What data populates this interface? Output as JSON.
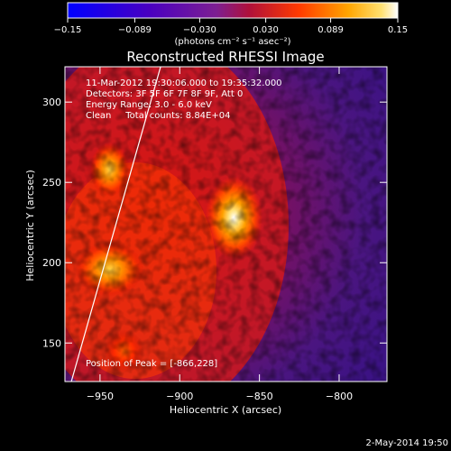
{
  "chart_data": {
    "type": "heatmap",
    "title": "Reconstructed RHESSI Image",
    "xlabel": "Heliocentric X (arcsec)",
    "ylabel": "Heliocentric Y (arcsec)",
    "xlim": [
      -972,
      -770
    ],
    "ylim": [
      126,
      322
    ],
    "x_ticks": [
      -950,
      -900,
      -850,
      -800
    ],
    "x_tick_labels": [
      "−950",
      "−900",
      "−850",
      "−800"
    ],
    "y_ticks": [
      150,
      200,
      250,
      300
    ],
    "y_tick_labels": [
      "150",
      "200",
      "250",
      "300"
    ],
    "colorbar": {
      "range": [
        -0.15,
        0.15
      ],
      "ticks": [
        -0.15,
        -0.089,
        -0.03,
        0.03,
        0.089,
        0.15
      ],
      "tick_labels": [
        "−0.15",
        "−0.089",
        "−0.030",
        "0.030",
        "0.089",
        "0.15"
      ],
      "units": "(photons cm⁻² s⁻¹ asec⁻²)",
      "colors": [
        "#0000ff",
        "#5a00b8",
        "#8a2b8a",
        "#c21010",
        "#ff6a00",
        "#ffd34a",
        "#ffffff"
      ]
    },
    "info_lines": [
      "11-Mar-2012 19:30:06.000 to 19:35:32.000",
      "Detectors: 3F 5F 6F 7F 8F 9F, Att 0",
      "Energy Range: 3.0 - 6.0 keV",
      "Clean     Total counts: 8.84E+04"
    ],
    "peak_label": "Position of Peak = [-866,228]",
    "peak": [
      -866,
      228
    ],
    "sources": [
      {
        "x": -866,
        "y": 228,
        "value": 0.15
      },
      {
        "x": -944,
        "y": 196,
        "value": 0.13
      },
      {
        "x": -944,
        "y": 258,
        "value": 0.1
      },
      {
        "x": -935,
        "y": 145,
        "value": 0.07
      }
    ],
    "limb_line": [
      [
        -968,
        126
      ],
      [
        -912,
        322
      ]
    ],
    "limb_color": "#ffffff"
  },
  "footer": {
    "date": "2-May-2014 19:50"
  }
}
